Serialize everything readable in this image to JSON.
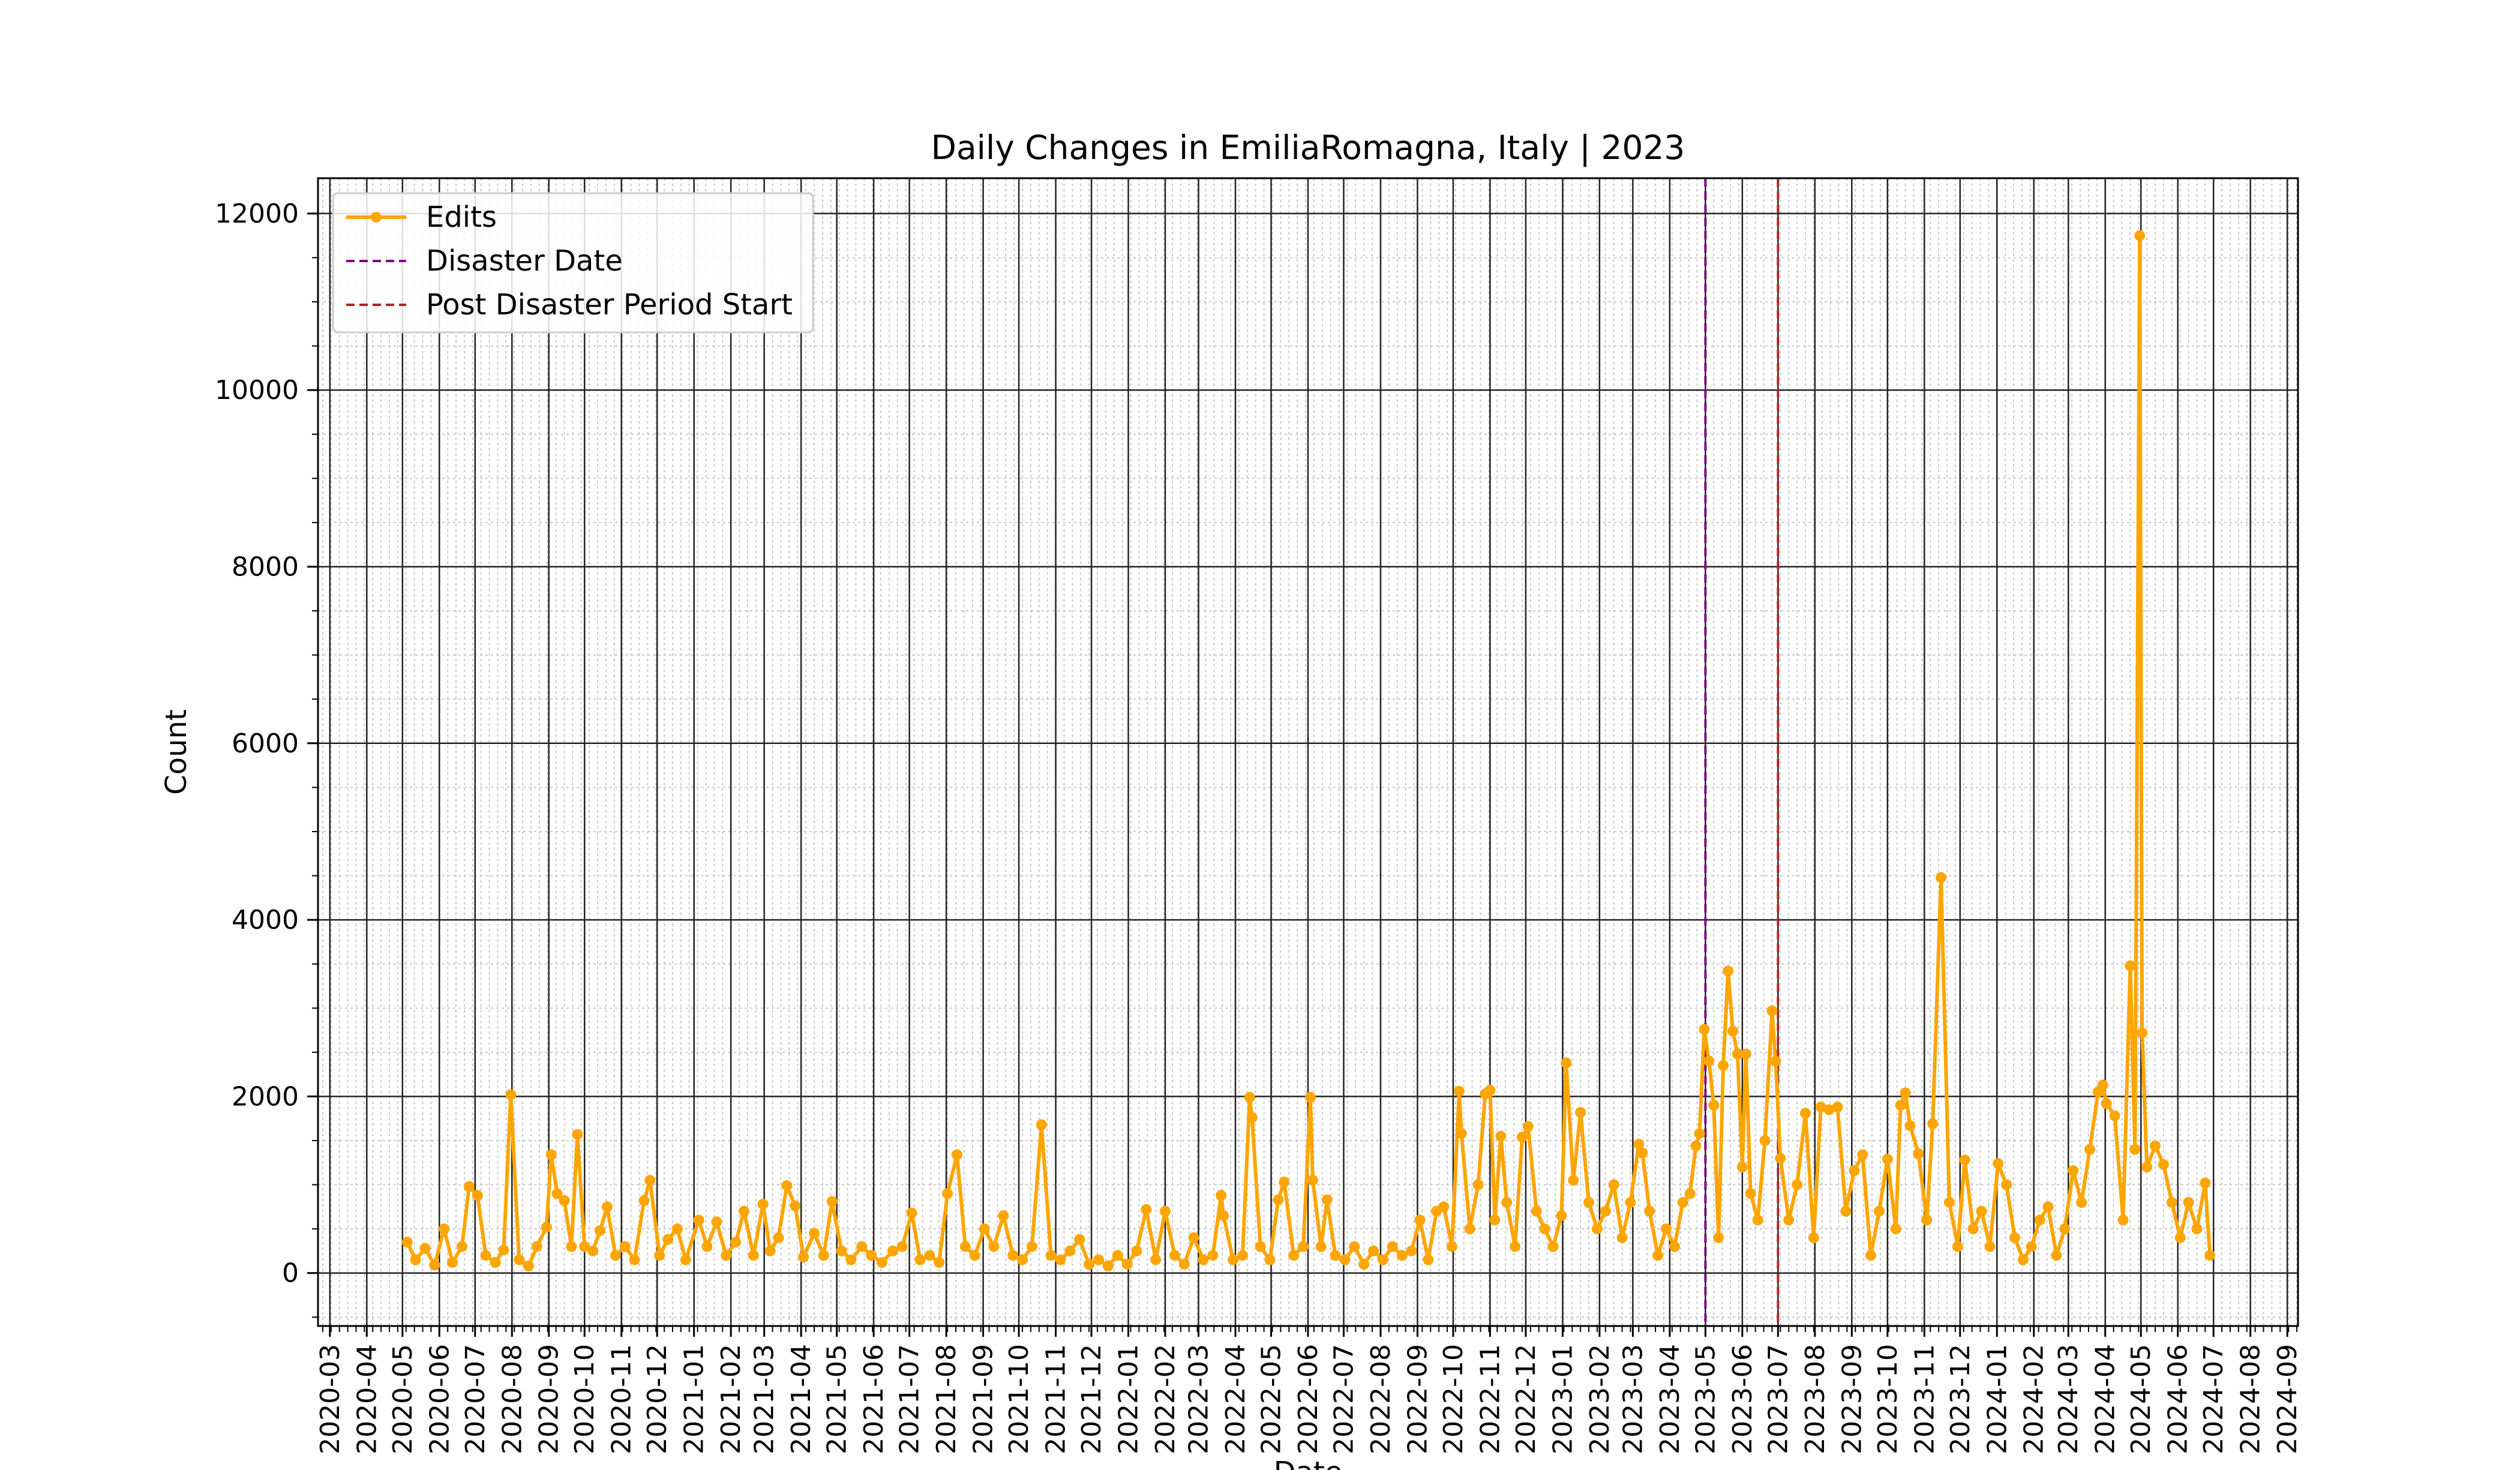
{
  "chart_data": {
    "type": "line",
    "title": "Daily Changes in EmiliaRomagna, Italy | 2023",
    "xlabel": "Date",
    "ylabel": "Count",
    "ylim": [
      -600,
      12400
    ],
    "xlim": [
      "2020-02-20",
      "2024-09-10"
    ],
    "y_ticks": [
      0,
      2000,
      4000,
      6000,
      8000,
      10000,
      12000
    ],
    "x_tick_labels": [
      "2020-03",
      "2020-04",
      "2020-05",
      "2020-06",
      "2020-07",
      "2020-08",
      "2020-09",
      "2020-10",
      "2020-11",
      "2020-12",
      "2021-01",
      "2021-02",
      "2021-03",
      "2021-04",
      "2021-05",
      "2021-06",
      "2021-07",
      "2021-08",
      "2021-09",
      "2021-10",
      "2021-11",
      "2021-12",
      "2022-01",
      "2022-02",
      "2022-03",
      "2022-04",
      "2022-05",
      "2022-06",
      "2022-07",
      "2022-08",
      "2022-09",
      "2022-10",
      "2022-11",
      "2022-12",
      "2023-01",
      "2023-02",
      "2023-03",
      "2023-04",
      "2023-05",
      "2023-06",
      "2023-07",
      "2023-08",
      "2023-09",
      "2023-10",
      "2023-11",
      "2023-12",
      "2024-01",
      "2024-02",
      "2024-03",
      "2024-04",
      "2024-05",
      "2024-06",
      "2024-07",
      "2024-08",
      "2024-09"
    ],
    "grid": true,
    "legend_position": "top-left",
    "series": [
      {
        "name": "Edits",
        "color": "#FFA500",
        "marker": "circle",
        "points": [
          [
            "2020-05-05",
            350
          ],
          [
            "2020-05-12",
            150
          ],
          [
            "2020-05-20",
            280
          ],
          [
            "2020-05-28",
            90
          ],
          [
            "2020-06-05",
            500
          ],
          [
            "2020-06-12",
            120
          ],
          [
            "2020-06-20",
            300
          ],
          [
            "2020-06-26",
            980
          ],
          [
            "2020-07-03",
            880
          ],
          [
            "2020-07-10",
            200
          ],
          [
            "2020-07-18",
            120
          ],
          [
            "2020-07-25",
            260
          ],
          [
            "2020-07-31",
            2020
          ],
          [
            "2020-08-07",
            150
          ],
          [
            "2020-08-15",
            80
          ],
          [
            "2020-08-22",
            300
          ],
          [
            "2020-08-30",
            520
          ],
          [
            "2020-09-03",
            1340
          ],
          [
            "2020-09-08",
            900
          ],
          [
            "2020-09-14",
            820
          ],
          [
            "2020-09-20",
            300
          ],
          [
            "2020-09-25",
            1570
          ],
          [
            "2020-10-01",
            300
          ],
          [
            "2020-10-08",
            250
          ],
          [
            "2020-10-14",
            480
          ],
          [
            "2020-10-20",
            750
          ],
          [
            "2020-10-27",
            200
          ],
          [
            "2020-11-04",
            300
          ],
          [
            "2020-11-12",
            150
          ],
          [
            "2020-11-20",
            820
          ],
          [
            "2020-11-25",
            1050
          ],
          [
            "2020-12-03",
            200
          ],
          [
            "2020-12-10",
            380
          ],
          [
            "2020-12-18",
            500
          ],
          [
            "2020-12-25",
            150
          ],
          [
            "2021-01-05",
            600
          ],
          [
            "2021-01-12",
            300
          ],
          [
            "2021-01-20",
            580
          ],
          [
            "2021-01-28",
            200
          ],
          [
            "2021-02-05",
            350
          ],
          [
            "2021-02-12",
            700
          ],
          [
            "2021-02-20",
            200
          ],
          [
            "2021-02-28",
            780
          ],
          [
            "2021-03-06",
            250
          ],
          [
            "2021-03-13",
            400
          ],
          [
            "2021-03-20",
            990
          ],
          [
            "2021-03-27",
            760
          ],
          [
            "2021-04-03",
            180
          ],
          [
            "2021-04-12",
            450
          ],
          [
            "2021-04-20",
            200
          ],
          [
            "2021-04-27",
            810
          ],
          [
            "2021-05-05",
            250
          ],
          [
            "2021-05-13",
            150
          ],
          [
            "2021-05-22",
            300
          ],
          [
            "2021-05-30",
            200
          ],
          [
            "2021-06-08",
            120
          ],
          [
            "2021-06-17",
            250
          ],
          [
            "2021-06-25",
            300
          ],
          [
            "2021-07-03",
            680
          ],
          [
            "2021-07-10",
            150
          ],
          [
            "2021-07-18",
            200
          ],
          [
            "2021-07-26",
            120
          ],
          [
            "2021-08-02",
            900
          ],
          [
            "2021-08-10",
            1340
          ],
          [
            "2021-08-17",
            300
          ],
          [
            "2021-08-25",
            200
          ],
          [
            "2021-09-02",
            500
          ],
          [
            "2021-09-10",
            300
          ],
          [
            "2021-09-18",
            650
          ],
          [
            "2021-09-26",
            200
          ],
          [
            "2021-10-04",
            150
          ],
          [
            "2021-10-12",
            300
          ],
          [
            "2021-10-20",
            1680
          ],
          [
            "2021-10-28",
            200
          ],
          [
            "2021-11-05",
            150
          ],
          [
            "2021-11-13",
            250
          ],
          [
            "2021-11-21",
            380
          ],
          [
            "2021-11-29",
            100
          ],
          [
            "2021-12-07",
            150
          ],
          [
            "2021-12-15",
            80
          ],
          [
            "2021-12-23",
            200
          ],
          [
            "2021-12-31",
            100
          ],
          [
            "2022-01-08",
            250
          ],
          [
            "2022-01-16",
            720
          ],
          [
            "2022-01-24",
            150
          ],
          [
            "2022-02-01",
            700
          ],
          [
            "2022-02-09",
            200
          ],
          [
            "2022-02-17",
            100
          ],
          [
            "2022-02-25",
            400
          ],
          [
            "2022-03-05",
            150
          ],
          [
            "2022-03-13",
            200
          ],
          [
            "2022-03-20",
            880
          ],
          [
            "2022-03-22",
            650
          ],
          [
            "2022-03-30",
            150
          ],
          [
            "2022-04-07",
            200
          ],
          [
            "2022-04-13",
            1990
          ],
          [
            "2022-04-15",
            1760
          ],
          [
            "2022-04-22",
            300
          ],
          [
            "2022-04-30",
            150
          ],
          [
            "2022-05-07",
            830
          ],
          [
            "2022-05-12",
            1030
          ],
          [
            "2022-05-20",
            200
          ],
          [
            "2022-05-28",
            300
          ],
          [
            "2022-06-03",
            1990
          ],
          [
            "2022-06-05",
            1050
          ],
          [
            "2022-06-12",
            300
          ],
          [
            "2022-06-17",
            830
          ],
          [
            "2022-06-24",
            200
          ],
          [
            "2022-07-02",
            150
          ],
          [
            "2022-07-10",
            300
          ],
          [
            "2022-07-18",
            100
          ],
          [
            "2022-07-26",
            250
          ],
          [
            "2022-08-03",
            150
          ],
          [
            "2022-08-11",
            300
          ],
          [
            "2022-08-19",
            200
          ],
          [
            "2022-08-27",
            250
          ],
          [
            "2022-09-03",
            600
          ],
          [
            "2022-09-10",
            150
          ],
          [
            "2022-09-17",
            700
          ],
          [
            "2022-09-23",
            750
          ],
          [
            "2022-09-30",
            300
          ],
          [
            "2022-10-06",
            2060
          ],
          [
            "2022-10-08",
            1580
          ],
          [
            "2022-10-15",
            500
          ],
          [
            "2022-10-22",
            1000
          ],
          [
            "2022-10-28",
            2030
          ],
          [
            "2022-11-01",
            2070
          ],
          [
            "2022-11-05",
            600
          ],
          [
            "2022-11-10",
            1550
          ],
          [
            "2022-11-15",
            800
          ],
          [
            "2022-11-22",
            300
          ],
          [
            "2022-11-28",
            1540
          ],
          [
            "2022-12-03",
            1660
          ],
          [
            "2022-12-10",
            700
          ],
          [
            "2022-12-17",
            500
          ],
          [
            "2022-12-24",
            300
          ],
          [
            "2022-12-31",
            650
          ],
          [
            "2023-01-04",
            2380
          ],
          [
            "2023-01-10",
            1050
          ],
          [
            "2023-01-16",
            1820
          ],
          [
            "2023-01-23",
            800
          ],
          [
            "2023-01-30",
            500
          ],
          [
            "2023-02-06",
            700
          ],
          [
            "2023-02-13",
            1000
          ],
          [
            "2023-02-20",
            400
          ],
          [
            "2023-02-27",
            800
          ],
          [
            "2023-03-06",
            1460
          ],
          [
            "2023-03-09",
            1360
          ],
          [
            "2023-03-15",
            700
          ],
          [
            "2023-03-22",
            200
          ],
          [
            "2023-03-29",
            500
          ],
          [
            "2023-04-05",
            300
          ],
          [
            "2023-04-12",
            800
          ],
          [
            "2023-04-18",
            900
          ],
          [
            "2023-04-23",
            1440
          ],
          [
            "2023-04-26",
            1580
          ],
          [
            "2023-04-30",
            2760
          ],
          [
            "2023-05-04",
            2400
          ],
          [
            "2023-05-08",
            1900
          ],
          [
            "2023-05-12",
            400
          ],
          [
            "2023-05-16",
            2350
          ],
          [
            "2023-05-20",
            3420
          ],
          [
            "2023-05-24",
            2740
          ],
          [
            "2023-05-28",
            2480
          ],
          [
            "2023-06-01",
            1200
          ],
          [
            "2023-06-04",
            2480
          ],
          [
            "2023-06-08",
            900
          ],
          [
            "2023-06-14",
            600
          ],
          [
            "2023-06-20",
            1500
          ],
          [
            "2023-06-26",
            2970
          ],
          [
            "2023-06-29",
            2400
          ],
          [
            "2023-07-03",
            1300
          ],
          [
            "2023-07-10",
            600
          ],
          [
            "2023-07-17",
            1000
          ],
          [
            "2023-07-24",
            1810
          ],
          [
            "2023-07-31",
            400
          ],
          [
            "2023-08-06",
            1880
          ],
          [
            "2023-08-13",
            1850
          ],
          [
            "2023-08-20",
            1880
          ],
          [
            "2023-08-27",
            700
          ],
          [
            "2023-09-03",
            1160
          ],
          [
            "2023-09-10",
            1340
          ],
          [
            "2023-09-17",
            200
          ],
          [
            "2023-09-24",
            700
          ],
          [
            "2023-10-01",
            1290
          ],
          [
            "2023-10-08",
            500
          ],
          [
            "2023-10-12",
            1900
          ],
          [
            "2023-10-16",
            2040
          ],
          [
            "2023-10-20",
            1670
          ],
          [
            "2023-10-27",
            1350
          ],
          [
            "2023-11-03",
            600
          ],
          [
            "2023-11-08",
            1690
          ],
          [
            "2023-11-15",
            4480
          ],
          [
            "2023-11-22",
            800
          ],
          [
            "2023-11-29",
            300
          ],
          [
            "2023-12-05",
            1280
          ],
          [
            "2023-12-12",
            500
          ],
          [
            "2023-12-19",
            700
          ],
          [
            "2023-12-26",
            300
          ],
          [
            "2024-01-02",
            1240
          ],
          [
            "2024-01-09",
            1000
          ],
          [
            "2024-01-16",
            400
          ],
          [
            "2024-01-23",
            150
          ],
          [
            "2024-01-30",
            300
          ],
          [
            "2024-02-06",
            600
          ],
          [
            "2024-02-13",
            750
          ],
          [
            "2024-02-20",
            200
          ],
          [
            "2024-02-27",
            500
          ],
          [
            "2024-03-05",
            1160
          ],
          [
            "2024-03-12",
            800
          ],
          [
            "2024-03-19",
            1400
          ],
          [
            "2024-03-26",
            2050
          ],
          [
            "2024-03-30",
            2130
          ],
          [
            "2024-04-02",
            1920
          ],
          [
            "2024-04-09",
            1780
          ],
          [
            "2024-04-16",
            600
          ],
          [
            "2024-04-22",
            3480
          ],
          [
            "2024-04-26",
            1400
          ],
          [
            "2024-04-30",
            11750
          ],
          [
            "2024-05-02",
            2720
          ],
          [
            "2024-05-06",
            1200
          ],
          [
            "2024-05-13",
            1440
          ],
          [
            "2024-05-20",
            1230
          ],
          [
            "2024-05-27",
            800
          ],
          [
            "2024-06-03",
            400
          ],
          [
            "2024-06-10",
            800
          ],
          [
            "2024-06-17",
            500
          ],
          [
            "2024-06-24",
            1020
          ],
          [
            "2024-06-28",
            200
          ]
        ]
      },
      {
        "name": "Disaster Date",
        "color": "#800080",
        "style": "dashed",
        "x": "2023-05-01"
      },
      {
        "name": "Post Disaster Period Start",
        "color": "#B22222",
        "style": "dashed",
        "x": "2023-07-01"
      }
    ]
  }
}
